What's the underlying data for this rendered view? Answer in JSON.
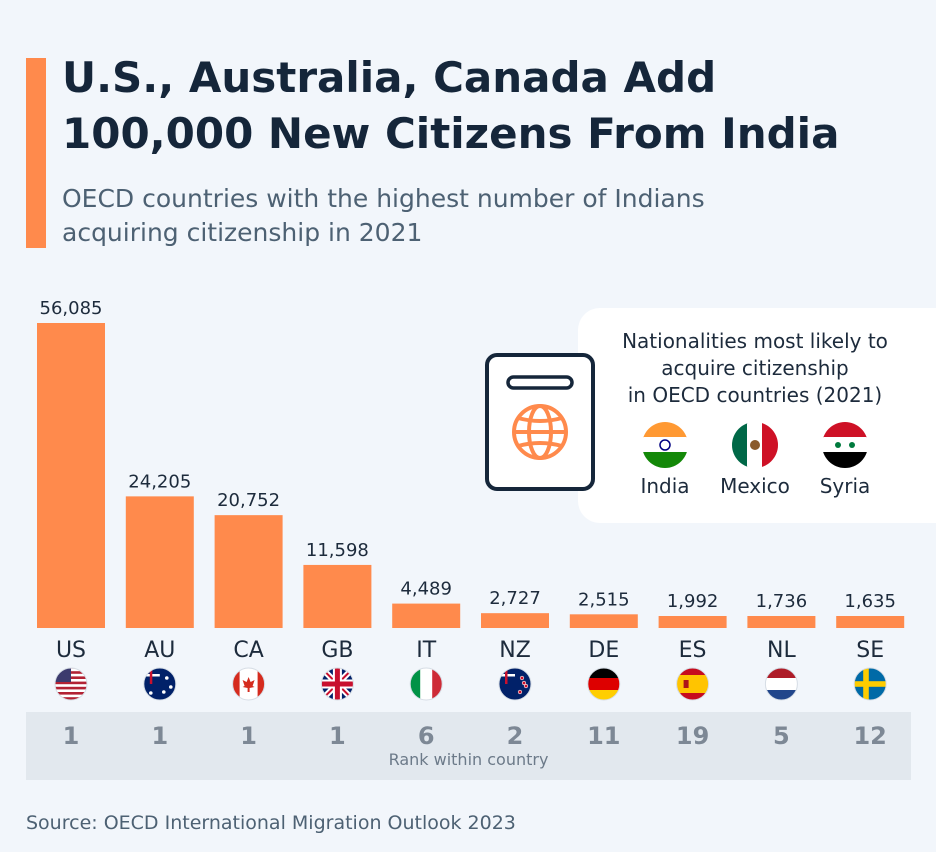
{
  "header": {
    "title_line1": "U.S., Australia, Canada Add",
    "title_line2": "100,000 New Citizens From India",
    "subtitle_line1": "OECD countries with the highest number of Indians",
    "subtitle_line2": "acquiring citizenship in 2021"
  },
  "chart_data": {
    "type": "bar",
    "title": "U.S., Australia, Canada Add 100,000 New Citizens From India",
    "subtitle": "OECD countries with the highest number of Indians acquiring citizenship in 2021",
    "categories": [
      "US",
      "AU",
      "CA",
      "GB",
      "IT",
      "NZ",
      "DE",
      "ES",
      "NL",
      "SE"
    ],
    "values": [
      56085,
      24205,
      20752,
      11598,
      4489,
      2727,
      2515,
      1992,
      1736,
      1635
    ],
    "value_labels": [
      "56,085",
      "24,205",
      "20,752",
      "11,598",
      "4,489",
      "2,727",
      "2,515",
      "1,992",
      "1,736",
      "1,635"
    ],
    "ranks": [
      "1",
      "1",
      "1",
      "1",
      "6",
      "2",
      "11",
      "19",
      "5",
      "12"
    ],
    "rank_label": "Rank within country",
    "flags": [
      "flag-us-icon",
      "flag-au-icon",
      "flag-ca-icon",
      "flag-gb-icon",
      "flag-it-icon",
      "flag-nz-icon",
      "flag-de-icon",
      "flag-es-icon",
      "flag-nl-icon",
      "flag-se-icon"
    ],
    "xlabel": "",
    "ylabel": "",
    "ylim": [
      0,
      56085
    ],
    "grid": false,
    "bar_color": "#ff8a4c"
  },
  "infobox": {
    "title_line1": "Nationalities most likely to",
    "title_line2": "acquire citizenship",
    "title_line3": "in OECD countries (2021)",
    "icon": "passport-globe-icon",
    "nationalities": [
      {
        "label": "India",
        "icon": "flag-india-icon"
      },
      {
        "label": "Mexico",
        "icon": "flag-mexico-icon"
      },
      {
        "label": "Syria",
        "icon": "flag-syria-icon"
      }
    ]
  },
  "footer": {
    "source": "Source: OECD International Migration Outlook 2023"
  },
  "colors": {
    "accent": "#ff8a4c",
    "background": "#f2f6fb",
    "title": "#15263a",
    "rank_panel": "#e2e8ee"
  }
}
